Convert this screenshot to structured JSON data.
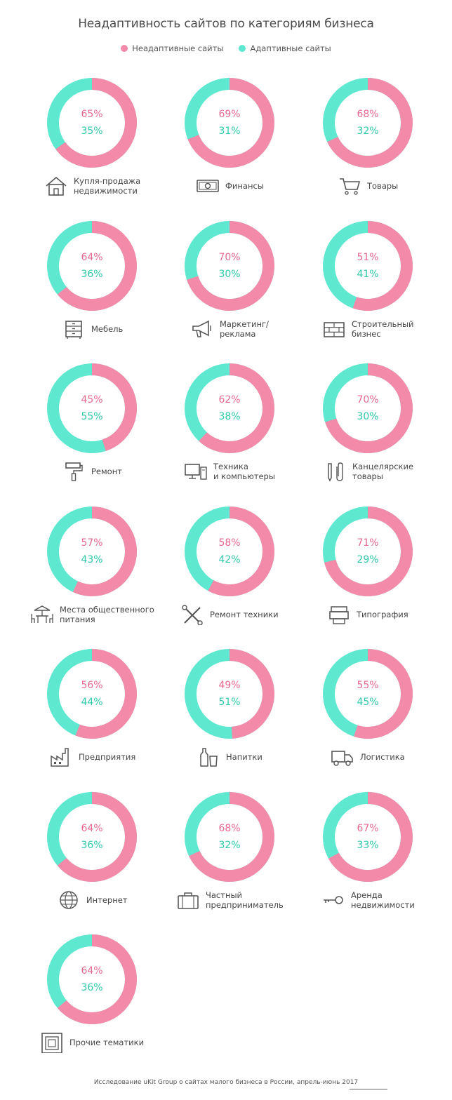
{
  "title": "Неадаптивность сайтов по категориям бизнеса",
  "legend": [
    {
      "label": "Неадаптивные сайты",
      "color": "#f48aa9"
    },
    {
      "label": "Адаптивные сайты",
      "color": "#5de8cf"
    }
  ],
  "colors": {
    "pink": "#f48aa9",
    "teal": "#5de8cf",
    "pink_text": "#e8698f",
    "teal_text": "#2fc9a9"
  },
  "footer": "Исследование uKit Group о сайтах малого бизнеса в России, апрель-июнь 2017",
  "chart_data": {
    "type": "pie",
    "series": [
      {
        "name": "Неадаптивные сайты",
        "values": [
          65,
          69,
          68,
          64,
          70,
          51,
          45,
          62,
          70,
          57,
          58,
          71,
          56,
          49,
          55,
          64,
          68,
          67,
          64
        ]
      },
      {
        "name": "Адаптивные сайты",
        "values": [
          35,
          31,
          32,
          36,
          30,
          41,
          55,
          38,
          30,
          43,
          42,
          29,
          44,
          51,
          45,
          36,
          32,
          33,
          36
        ]
      }
    ],
    "categories": [
      {
        "label": "Купля-продажа\nнедвижимости",
        "icon": "house-icon",
        "non_adaptive": 65,
        "adaptive": 35,
        "non_label": "65%",
        "ad_label": "35%"
      },
      {
        "label": "Финансы",
        "icon": "money-icon",
        "non_adaptive": 69,
        "adaptive": 31,
        "non_label": "69%",
        "ad_label": "31%"
      },
      {
        "label": "Товары",
        "icon": "cart-icon",
        "non_adaptive": 68,
        "adaptive": 32,
        "non_label": "68%",
        "ad_label": "32%"
      },
      {
        "label": "Мебель",
        "icon": "dresser-icon",
        "non_adaptive": 64,
        "adaptive": 36,
        "non_label": "64%",
        "ad_label": "36%"
      },
      {
        "label": "Маркетинг/\nреклама",
        "icon": "megaphone-icon",
        "non_adaptive": 70,
        "adaptive": 30,
        "non_label": "70%",
        "ad_label": "30%"
      },
      {
        "label": "Строительный\nбизнес",
        "icon": "bricks-icon",
        "non_adaptive": 51,
        "adaptive": 41,
        "non_label": "51%",
        "ad_label": "41%"
      },
      {
        "label": "Ремонт",
        "icon": "paint-roller-icon",
        "non_adaptive": 45,
        "adaptive": 55,
        "non_label": "45%",
        "ad_label": "55%"
      },
      {
        "label": "Техника\nи компьютеры",
        "icon": "computer-icon",
        "non_adaptive": 62,
        "adaptive": 38,
        "non_label": "62%",
        "ad_label": "38%"
      },
      {
        "label": "Канцелярские\nтовары",
        "icon": "stationery-icon",
        "non_adaptive": 70,
        "adaptive": 30,
        "non_label": "70%",
        "ad_label": "30%"
      },
      {
        "label": "Места общественного\nпитания",
        "icon": "cafe-table-icon",
        "non_adaptive": 57,
        "adaptive": 43,
        "non_label": "57%",
        "ad_label": "43%"
      },
      {
        "label": "Ремонт техники",
        "icon": "tools-icon",
        "non_adaptive": 58,
        "adaptive": 42,
        "non_label": "58%",
        "ad_label": "42%"
      },
      {
        "label": "Типография",
        "icon": "printer-icon",
        "non_adaptive": 71,
        "adaptive": 29,
        "non_label": "71%",
        "ad_label": "29%"
      },
      {
        "label": "Предприятия",
        "icon": "factory-icon",
        "non_adaptive": 56,
        "adaptive": 44,
        "non_label": "56%",
        "ad_label": "44%"
      },
      {
        "label": "Напитки",
        "icon": "drinks-icon",
        "non_adaptive": 49,
        "adaptive": 51,
        "non_label": "49%",
        "ad_label": "51%"
      },
      {
        "label": "Логистика",
        "icon": "truck-icon",
        "non_adaptive": 55,
        "adaptive": 45,
        "non_label": "55%",
        "ad_label": "45%"
      },
      {
        "label": "Интернет",
        "icon": "globe-icon",
        "non_adaptive": 64,
        "adaptive": 36,
        "non_label": "64%",
        "ad_label": "36%"
      },
      {
        "label": "Частный\nпредприниматель",
        "icon": "briefcase-icon",
        "non_adaptive": 68,
        "adaptive": 32,
        "non_label": "68%",
        "ad_label": "32%"
      },
      {
        "label": "Аренда\nнедвижимости",
        "icon": "key-icon",
        "non_adaptive": 67,
        "adaptive": 33,
        "non_label": "67%",
        "ad_label": "33%"
      },
      {
        "label": "Прочие тематики",
        "icon": "square-frame-icon",
        "non_adaptive": 64,
        "adaptive": 36,
        "non_label": "64%",
        "ad_label": "36%"
      }
    ]
  }
}
